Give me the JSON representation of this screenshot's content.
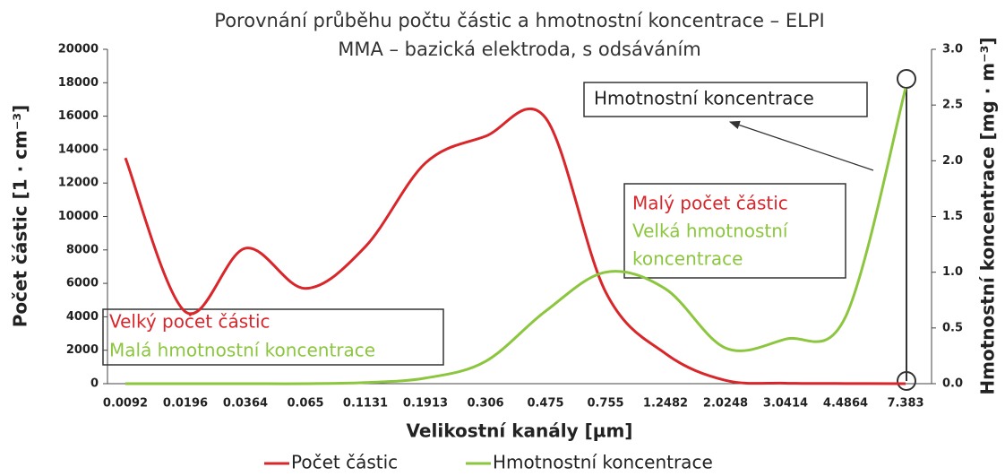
{
  "chart_data": {
    "type": "line",
    "title": "Porovnání průběhu počtu částic a hmotnostní koncentrace – ELPI",
    "subtitle": "MMA – bazická elektroda, s odsáváním",
    "x_label": "Velikostní kanály [µm]",
    "y_label": "Počet částic [1 · cm⁻³]",
    "y2_label": "Hmotnostní koncentrace [mg · m⁻³]",
    "categories": [
      "0.0092",
      "0.0196",
      "0.0364",
      "0.065",
      "0.1131",
      "0.1913",
      "0.306",
      "0.475",
      "0.755",
      "1.2482",
      "2.0248",
      "3.0414",
      "4.4864",
      "7.383"
    ],
    "series": [
      {
        "name": "Počet částic",
        "color": "#d9262b",
        "values": [
          13500,
          4300,
          8100,
          5700,
          8200,
          13200,
          14800,
          15900,
          5500,
          1800,
          200,
          30,
          10,
          0
        ]
      },
      {
        "name": "Hmotnostní koncentrace",
        "color": "#8cc63f",
        "axis": "y2",
        "values": [
          0,
          0,
          0,
          0,
          0.01,
          0.05,
          0.2,
          0.65,
          1.0,
          0.85,
          0.32,
          0.4,
          0.6,
          2.65
        ]
      }
    ],
    "ylim": [
      0,
      20000
    ],
    "yticks": [
      0,
      2000,
      4000,
      6000,
      8000,
      10000,
      12000,
      14000,
      16000,
      18000,
      20000
    ],
    "y2lim": [
      0,
      3
    ],
    "y2ticks": [
      {
        "value": 0,
        "label": "0.0"
      },
      0.5,
      {
        "value": 1,
        "label": "1.0"
      },
      1.5,
      {
        "value": 2,
        "label": "2.0"
      },
      2.5,
      {
        "value": 3,
        "label": "3.0"
      }
    ],
    "annotations": [
      {
        "lines": [
          "Velký počet částic",
          "Malá hmotnostní koncentrace"
        ]
      },
      {
        "lines": [
          "Malý počet částic",
          "Velká hmotnostní",
          "koncentrace"
        ]
      },
      {
        "lines": [
          "Hmotnostní koncentrace"
        ]
      }
    ],
    "legend": "bottom"
  }
}
